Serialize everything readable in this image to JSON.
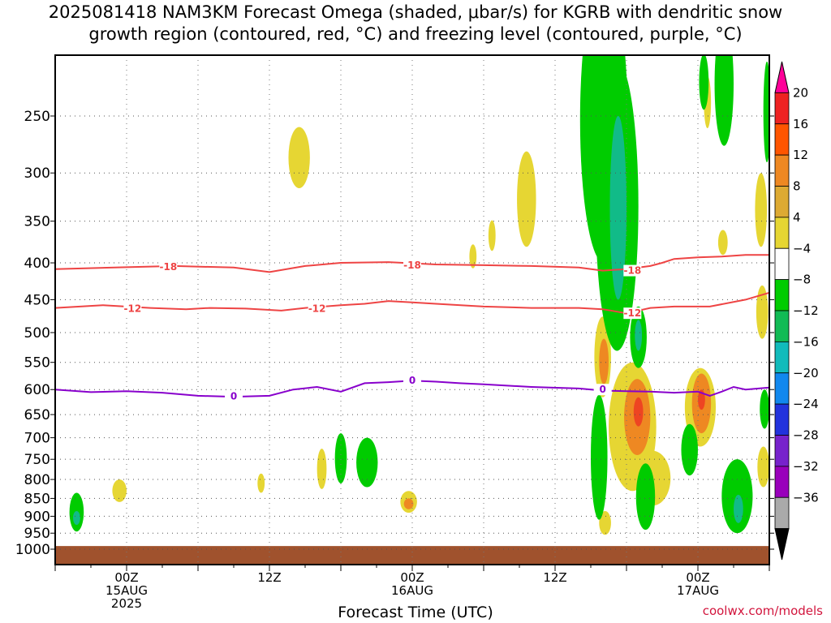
{
  "title_line1": "2025081418 NAM3KM Forecast Omega (shaded, μbar/s) for KGRB with dendritic snow",
  "title_line2": "growth region (contoured, red, °C) and freezing level (contoured, purple, °C)",
  "xlabel": "Forecast Time (UTC)",
  "credit": "coolwx.com/models",
  "chart_data": {
    "type": "contour",
    "y_axis": {
      "label": "",
      "ticks": [
        250,
        300,
        350,
        400,
        450,
        500,
        550,
        600,
        650,
        700,
        750,
        800,
        850,
        900,
        950,
        1000
      ],
      "scale": "log-pressure",
      "range": [
        210,
        1020
      ]
    },
    "x_axis": {
      "ticks": [
        {
          "hour": 6,
          "line1": "00Z",
          "line2": "15AUG",
          "line3": "2025"
        },
        {
          "hour": 18,
          "line1": "12Z",
          "line2": "",
          "line3": ""
        },
        {
          "hour": 30,
          "line1": "00Z",
          "line2": "16AUG",
          "line3": ""
        },
        {
          "hour": 42,
          "line1": "12Z",
          "line2": "",
          "line3": ""
        },
        {
          "hour": 54,
          "line1": "00Z",
          "line2": "17AUG",
          "line3": ""
        }
      ],
      "range": [
        0,
        60
      ]
    },
    "colorbar": {
      "labels": [
        "20",
        "16",
        "12",
        "8",
        "4",
        "−4",
        "−8",
        "−12",
        "−16",
        "−20",
        "−24",
        "−28",
        "−32",
        "−36"
      ],
      "colors": [
        "#ff0099",
        "#ee2222",
        "#ff5500",
        "#ee8822",
        "#ddaa33",
        "#e6d633",
        "#ffffff",
        "#00cc00",
        "#11bb55",
        "#11bbbb",
        "#1188ee",
        "#2233dd",
        "#7722cc",
        "#9900bb",
        "#aaaaaa",
        "#000000"
      ]
    },
    "contour_lines": [
      {
        "name": "-18",
        "color": "#ee4444",
        "label": "-18",
        "points": [
          [
            0,
            408
          ],
          [
            5,
            406
          ],
          [
            10,
            404
          ],
          [
            15,
            406
          ],
          [
            18,
            412
          ],
          [
            21,
            404
          ],
          [
            24,
            400
          ],
          [
            28,
            399
          ],
          [
            32,
            402
          ],
          [
            36,
            403
          ],
          [
            40,
            404
          ],
          [
            44,
            406
          ],
          [
            46,
            410
          ],
          [
            48,
            408
          ],
          [
            50,
            404
          ],
          [
            51,
            400
          ],
          [
            52,
            395
          ],
          [
            54,
            393
          ],
          [
            56,
            392
          ],
          [
            58,
            390
          ],
          [
            60,
            390
          ]
        ]
      },
      {
        "name": "-12",
        "color": "#ee4444",
        "label": "-12",
        "points": [
          [
            0,
            462
          ],
          [
            4,
            458
          ],
          [
            8,
            462
          ],
          [
            11,
            464
          ],
          [
            13,
            462
          ],
          [
            16,
            463
          ],
          [
            19,
            466
          ],
          [
            21,
            462
          ],
          [
            24,
            458
          ],
          [
            26,
            456
          ],
          [
            28,
            452
          ],
          [
            30,
            454
          ],
          [
            32,
            456
          ],
          [
            36,
            460
          ],
          [
            40,
            462
          ],
          [
            44,
            462
          ],
          [
            46,
            464
          ],
          [
            48,
            470
          ],
          [
            50,
            462
          ],
          [
            52,
            460
          ],
          [
            55,
            460
          ],
          [
            58,
            450
          ],
          [
            60,
            440
          ]
        ]
      },
      {
        "name": "0",
        "color": "#8800cc",
        "label": "0",
        "points": [
          [
            0,
            600
          ],
          [
            3,
            605
          ],
          [
            6,
            603
          ],
          [
            9,
            606
          ],
          [
            12,
            612
          ],
          [
            15,
            614
          ],
          [
            18,
            612
          ],
          [
            20,
            600
          ],
          [
            22,
            595
          ],
          [
            24,
            604
          ],
          [
            26,
            588
          ],
          [
            28,
            586
          ],
          [
            30,
            583
          ],
          [
            32,
            585
          ],
          [
            34,
            588
          ],
          [
            36,
            590
          ],
          [
            40,
            595
          ],
          [
            44,
            598
          ],
          [
            46,
            602
          ],
          [
            48,
            603
          ],
          [
            50,
            604
          ],
          [
            52,
            606
          ],
          [
            54,
            604
          ],
          [
            55,
            612
          ],
          [
            56,
            604
          ],
          [
            57,
            595
          ],
          [
            58,
            600
          ],
          [
            60,
            596
          ]
        ]
      }
    ],
    "contour_labels": [
      {
        "text": "-18",
        "x": 9.5,
        "y": 405
      },
      {
        "text": "-18",
        "x": 30,
        "y": 403
      },
      {
        "text": "-18",
        "x": 48.5,
        "y": 410
      },
      {
        "text": "-12",
        "x": 6.5,
        "y": 463
      },
      {
        "text": "-12",
        "x": 22,
        "y": 463
      },
      {
        "text": "-12",
        "x": 48.5,
        "y": 470
      },
      {
        "text": "0",
        "x": 15,
        "y": 613
      },
      {
        "text": "0",
        "x": 30,
        "y": 583
      },
      {
        "text": "0",
        "x": 46,
        "y": 600
      }
    ],
    "shaded_regions": [
      {
        "name": "region-yellow-1",
        "color": "#e6d633",
        "x": 20.5,
        "y": 287,
        "rx": 0.9,
        "ry": 28
      },
      {
        "name": "region-yellow-2",
        "color": "#e6d633",
        "x": 39.6,
        "y": 330,
        "rx": 0.8,
        "ry": 50
      },
      {
        "name": "region-yellow-3",
        "color": "#e6d633",
        "x": 36.7,
        "y": 367,
        "rx": 0.3,
        "ry": 18
      },
      {
        "name": "region-yellow-4",
        "color": "#e6d633",
        "x": 35.1,
        "y": 392,
        "rx": 0.3,
        "ry": 15
      },
      {
        "name": "region-yellow-5",
        "color": "#e6d633",
        "x": 54.8,
        "y": 240,
        "rx": 0.3,
        "ry": 20
      },
      {
        "name": "region-yellow-6",
        "color": "#e6d633",
        "x": 56.1,
        "y": 375,
        "rx": 0.4,
        "ry": 15
      },
      {
        "name": "region-yellow-7",
        "color": "#e6d633",
        "x": 59.3,
        "y": 340,
        "rx": 0.5,
        "ry": 40
      },
      {
        "name": "region-yellow-8",
        "color": "#e6d633",
        "x": 59.4,
        "y": 470,
        "rx": 0.5,
        "ry": 40
      },
      {
        "name": "region-yellow-9",
        "color": "#e6d633",
        "x": 5.4,
        "y": 830,
        "rx": 0.6,
        "ry": 30
      },
      {
        "name": "region-yellow-10",
        "color": "#e6d633",
        "x": 17.3,
        "y": 810,
        "rx": 0.3,
        "ry": 25
      },
      {
        "name": "region-yellow-11",
        "color": "#e6d633",
        "x": 22.4,
        "y": 775,
        "rx": 0.4,
        "ry": 50
      },
      {
        "name": "region-yellow-12",
        "color": "#e6d633",
        "x": 29.7,
        "y": 860,
        "rx": 0.7,
        "ry": 30
      },
      {
        "name": "region-yellow-13",
        "color": "#e6d633",
        "x": 46.0,
        "y": 545,
        "rx": 0.7,
        "ry": 70
      },
      {
        "name": "region-yellow-14",
        "color": "#e6d633",
        "x": 46.2,
        "y": 920,
        "rx": 0.5,
        "ry": 35
      },
      {
        "name": "region-yellow-15",
        "color": "#e6d633",
        "x": 48.5,
        "y": 690,
        "rx": 2.0,
        "ry": 140
      },
      {
        "name": "region-yellow-16",
        "color": "#e6d633",
        "x": 54.2,
        "y": 640,
        "rx": 1.3,
        "ry": 80
      },
      {
        "name": "region-yellow-17",
        "color": "#e6d633",
        "x": 50.2,
        "y": 800,
        "rx": 1.5,
        "ry": 70
      },
      {
        "name": "region-yellow-18",
        "color": "#e6d633",
        "x": 59.5,
        "y": 770,
        "rx": 0.5,
        "ry": 50
      },
      {
        "name": "region-orange-1",
        "color": "#ee8822",
        "x": 46.1,
        "y": 550,
        "rx": 0.4,
        "ry": 40
      },
      {
        "name": "region-orange-2",
        "color": "#ee8822",
        "x": 48.9,
        "y": 660,
        "rx": 1.1,
        "ry": 80
      },
      {
        "name": "region-orange-3",
        "color": "#ee8822",
        "x": 54.3,
        "y": 630,
        "rx": 0.8,
        "ry": 60
      },
      {
        "name": "region-orange-4",
        "color": "#ee8822",
        "x": 29.7,
        "y": 865,
        "rx": 0.4,
        "ry": 15
      },
      {
        "name": "region-red-1",
        "color": "#ee4422",
        "x": 49.0,
        "y": 645,
        "rx": 0.4,
        "ry": 30
      },
      {
        "name": "region-red-2",
        "color": "#ee4422",
        "x": 54.3,
        "y": 620,
        "rx": 0.3,
        "ry": 20
      },
      {
        "name": "region-green-1",
        "color": "#00cc00",
        "x": 46.1,
        "y": 280,
        "rx": 2.0,
        "ry": 120
      },
      {
        "name": "region-green-2",
        "color": "#00cc00",
        "x": 47.2,
        "y": 370,
        "rx": 1.8,
        "ry": 160
      },
      {
        "name": "region-green-3",
        "color": "#00cc00",
        "x": 49.0,
        "y": 510,
        "rx": 0.7,
        "ry": 50
      },
      {
        "name": "region-green-4",
        "color": "#00cc00",
        "x": 56.2,
        "y": 230,
        "rx": 0.8,
        "ry": 45
      },
      {
        "name": "region-green-5",
        "color": "#00cc00",
        "x": 54.5,
        "y": 225,
        "rx": 0.4,
        "ry": 20
      },
      {
        "name": "region-green-6",
        "color": "#00cc00",
        "x": 59.8,
        "y": 250,
        "rx": 0.3,
        "ry": 40
      },
      {
        "name": "region-green-7",
        "color": "#00cc00",
        "x": 1.8,
        "y": 890,
        "rx": 0.6,
        "ry": 55
      },
      {
        "name": "region-green-8",
        "color": "#00cc00",
        "x": 24.0,
        "y": 750,
        "rx": 0.5,
        "ry": 60
      },
      {
        "name": "region-green-9",
        "color": "#00cc00",
        "x": 26.2,
        "y": 760,
        "rx": 0.9,
        "ry": 60
      },
      {
        "name": "region-green-10",
        "color": "#00cc00",
        "x": 45.7,
        "y": 760,
        "rx": 0.7,
        "ry": 150
      },
      {
        "name": "region-green-11",
        "color": "#00cc00",
        "x": 49.6,
        "y": 850,
        "rx": 0.8,
        "ry": 90
      },
      {
        "name": "region-green-12",
        "color": "#00cc00",
        "x": 53.3,
        "y": 730,
        "rx": 0.7,
        "ry": 60
      },
      {
        "name": "region-green-13",
        "color": "#00cc00",
        "x": 57.3,
        "y": 850,
        "rx": 1.3,
        "ry": 100
      },
      {
        "name": "region-green-14",
        "color": "#00cc00",
        "x": 59.6,
        "y": 640,
        "rx": 0.4,
        "ry": 40
      },
      {
        "name": "region-teal-1",
        "color": "#11bb88",
        "x": 47.3,
        "y": 350,
        "rx": 0.7,
        "ry": 100
      },
      {
        "name": "region-teal-2",
        "color": "#11bb88",
        "x": 57.4,
        "y": 880,
        "rx": 0.4,
        "ry": 40
      },
      {
        "name": "region-teal-3",
        "color": "#11bb88",
        "x": 49.0,
        "y": 505,
        "rx": 0.3,
        "ry": 25
      },
      {
        "name": "region-teal-4",
        "color": "#11bb88",
        "x": 1.8,
        "y": 905,
        "rx": 0.3,
        "ry": 20
      }
    ],
    "ground_level": 990
  }
}
